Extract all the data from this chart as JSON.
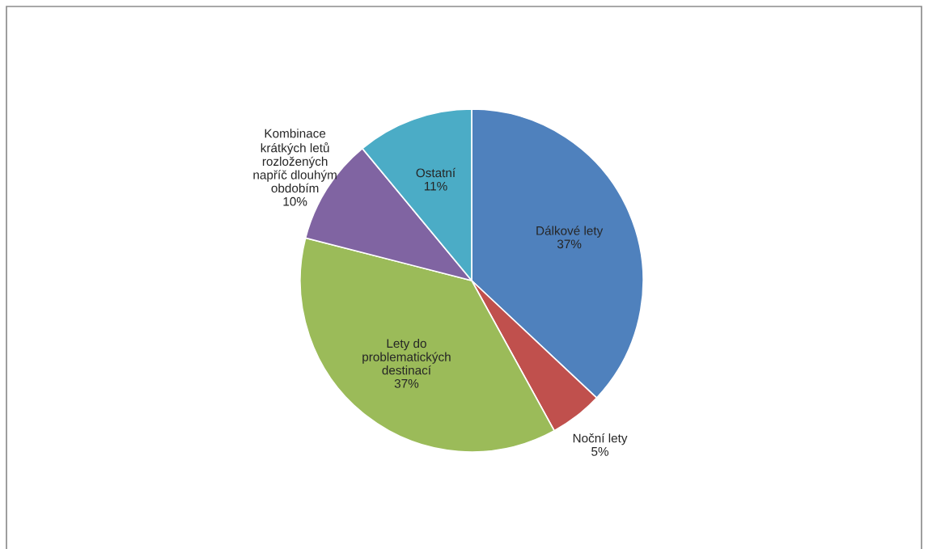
{
  "chart_data": {
    "type": "pie",
    "categories": [
      "Dálkové lety",
      "Noční lety",
      "Lety do\nproblematických\ndestinací",
      "Kombinace\nkrátkých letů\nrozložených\nnapříč dlouhým\nobdobím",
      "Ostatní"
    ],
    "values": [
      37,
      5,
      37,
      10,
      11
    ],
    "value_labels": [
      "37%",
      "5%",
      "37%",
      "10%",
      "11%"
    ],
    "colors": [
      "#4f81bd",
      "#c0504d",
      "#9bbb59",
      "#8064a2",
      "#4bacc6"
    ],
    "legend": false
  }
}
